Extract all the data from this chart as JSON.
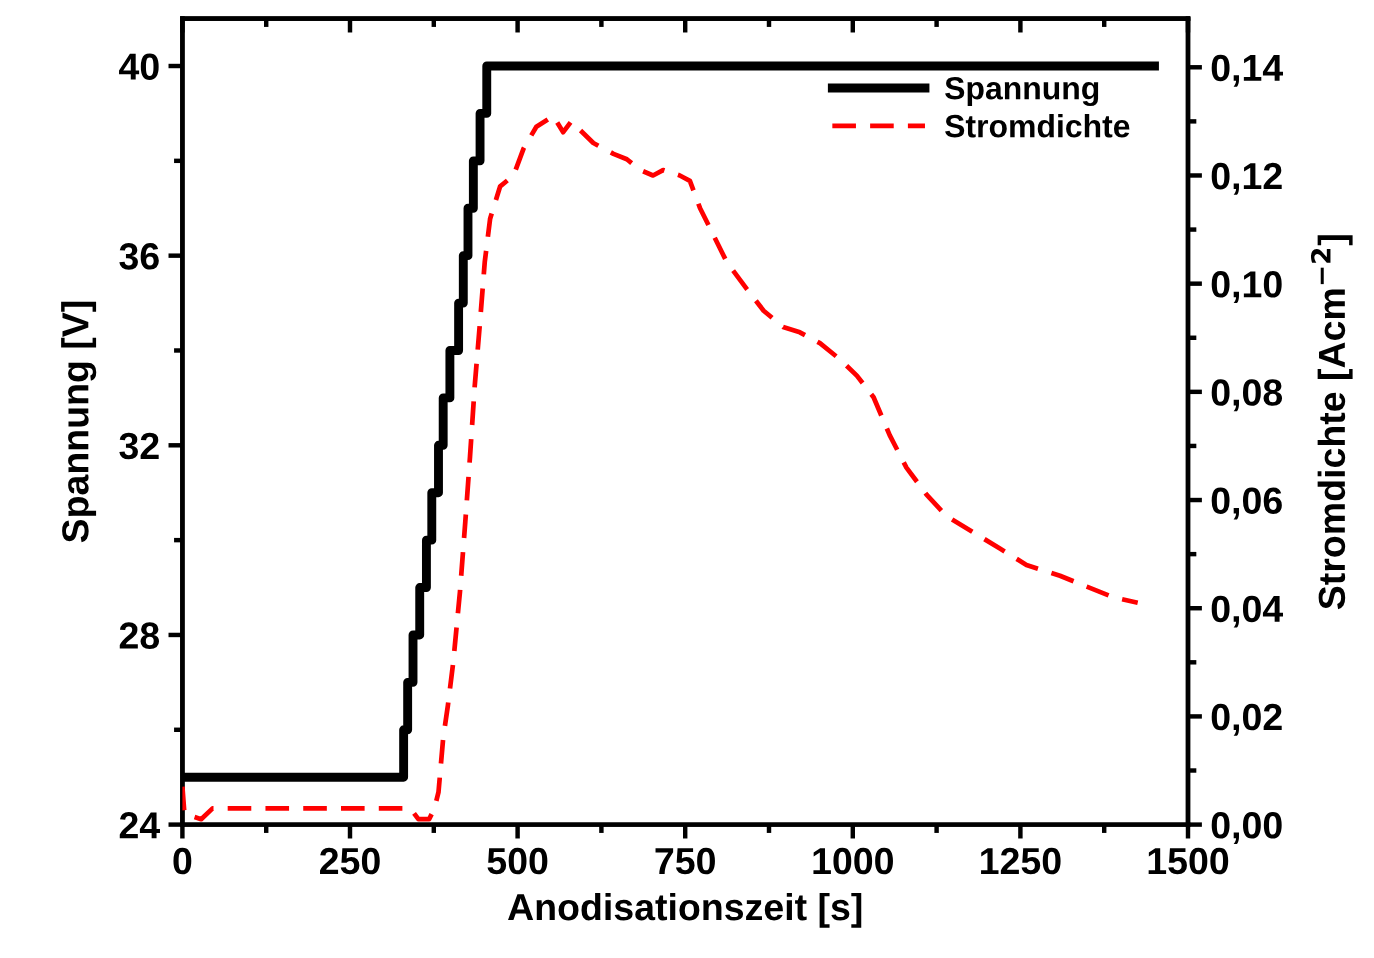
{
  "chart_data": {
    "type": "line",
    "xlabel": "Anodisationszeit [s]",
    "ylabel": "Spannung [V]",
    "y2label": "Stromdichte [Acm$^{−2}$]",
    "xlim": [
      0,
      1500
    ],
    "xticks": [
      0,
      {
        "value": 125,
        "label": null
      },
      250,
      {
        "value": 375,
        "label": null
      },
      500,
      {
        "value": 625,
        "label": null
      },
      750,
      {
        "value": 875,
        "label": null
      },
      1000,
      {
        "value": 1125,
        "label": null
      },
      1250,
      {
        "value": 1375,
        "label": null
      },
      1500
    ],
    "ylim": [
      24,
      41
    ],
    "yticks": [
      24,
      {
        "value": 26,
        "label": null
      },
      28,
      {
        "value": 30,
        "label": null
      },
      32,
      {
        "value": 34,
        "label": null
      },
      36,
      {
        "value": 38,
        "label": null
      },
      40
    ],
    "y2lim": [
      0,
      0.149
    ],
    "y2ticks": [
      {
        "value": 0,
        "label": "0,00"
      },
      {
        "value": 0.01,
        "label": null
      },
      {
        "value": 0.02,
        "label": "0,02"
      },
      {
        "value": 0.03,
        "label": null
      },
      {
        "value": 0.04,
        "label": "0,04"
      },
      {
        "value": 0.05,
        "label": null
      },
      {
        "value": 0.06,
        "label": "0,06"
      },
      {
        "value": 0.07,
        "label": null
      },
      {
        "value": 0.08,
        "label": "0,08"
      },
      {
        "value": 0.09,
        "label": null
      },
      {
        "value": 0.1,
        "label": "0,10"
      },
      {
        "value": 0.11,
        "label": null
      },
      {
        "value": 0.12,
        "label": "0,12"
      },
      {
        "value": 0.13,
        "label": null
      },
      {
        "value": 0.14,
        "label": "0,14"
      }
    ],
    "legend": "top right",
    "grid": false,
    "series": [
      {
        "name": "Spannung",
        "type": "step",
        "color": "#000000",
        "line_style": "solid",
        "x": [
          0,
          330,
          336,
          344,
          354,
          364,
          372,
          382,
          389,
          399,
          412,
          419,
          426,
          434,
          444,
          454,
          1450
        ],
        "values": [
          25,
          26,
          27,
          28,
          29,
          30,
          31,
          32,
          33,
          34,
          35,
          36,
          37,
          38,
          39,
          40,
          40
        ]
      },
      {
        "name": "Stromdichte",
        "axis": "y2",
        "color": "#ff0000",
        "line_style": "dashed",
        "x": [
          0,
          3,
          28,
          45,
          60,
          200,
          340,
          352,
          368,
          376,
          382,
          389,
          396,
          404,
          414,
          422,
          429,
          436,
          444,
          451,
          459,
          474,
          494,
          509,
          528,
          553,
          568,
          580,
          613,
          643,
          663,
          683,
          702,
          717,
          742,
          757,
          772,
          792,
          812,
          842,
          867,
          896,
          921,
          951,
          981,
          1006,
          1031,
          1055,
          1080,
          1110,
          1140,
          1180,
          1220,
          1259,
          1309,
          1349,
          1389,
          1425
        ],
        "values": [
          0.007,
          0.002,
          0.001,
          0.003,
          0.003,
          0.003,
          0.003,
          0.001,
          0.001,
          0.003,
          0.006,
          0.016,
          0.022,
          0.03,
          0.043,
          0.056,
          0.068,
          0.081,
          0.093,
          0.104,
          0.112,
          0.118,
          0.12,
          0.125,
          0.129,
          0.131,
          0.128,
          0.13,
          0.126,
          0.124,
          0.123,
          0.121,
          0.12,
          0.121,
          0.12,
          0.119,
          0.114,
          0.109,
          0.104,
          0.099,
          0.095,
          0.092,
          0.091,
          0.089,
          0.086,
          0.083,
          0.079,
          0.072,
          0.066,
          0.061,
          0.057,
          0.054,
          0.051,
          0.048,
          0.046,
          0.044,
          0.042,
          0.041
        ]
      }
    ]
  }
}
